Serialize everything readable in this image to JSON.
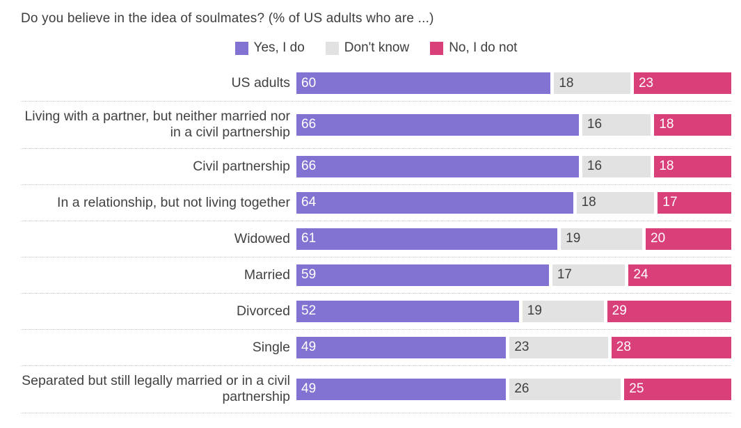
{
  "title": "Do you believe in the idea of soulmates? (% of US adults who are ...)",
  "colors": {
    "yes": "#8273d3",
    "dont_know": "#e2e2e2",
    "no": "#d94079",
    "text_dark": "#3f3f3f",
    "text_light": "#ffffff",
    "separator": "#c9c9c9"
  },
  "chart_data": {
    "type": "bar",
    "orientation": "horizontal",
    "stacked": true,
    "unit": "%",
    "title": "Do you believe in the idea of soulmates? (% of US adults who are ...)",
    "legend_position": "top",
    "grid": false,
    "categories": [
      "US adults",
      "Living with a partner, but neither married nor in a civil partnership",
      "Civil partnership",
      "In a relationship, but not living together",
      "Widowed",
      "Married",
      "Divorced",
      "Single",
      "Separated but still legally married or in a civil partnership"
    ],
    "series": [
      {
        "name": "Yes, I do",
        "key": "yes",
        "color": "#8273d3",
        "text_color": "#ffffff",
        "values": [
          60,
          66,
          66,
          64,
          61,
          59,
          52,
          49,
          49
        ]
      },
      {
        "name": "Don't know",
        "key": "dont-know",
        "color": "#e2e2e2",
        "text_color": "#3f3f3f",
        "values": [
          18,
          16,
          16,
          18,
          19,
          17,
          19,
          23,
          26
        ]
      },
      {
        "name": "No, I do not",
        "key": "no",
        "color": "#d94079",
        "text_color": "#ffffff",
        "values": [
          23,
          18,
          18,
          17,
          20,
          24,
          29,
          28,
          25
        ]
      }
    ]
  }
}
